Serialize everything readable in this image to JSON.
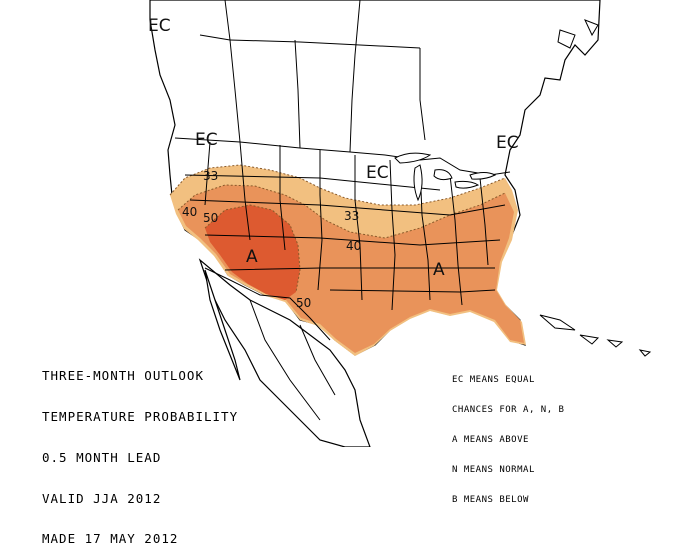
{
  "map_labels": {
    "ec": [
      "EC",
      "EC",
      "EC",
      "EC"
    ],
    "above": [
      "A",
      "A"
    ],
    "contours": [
      "33",
      "40",
      "50",
      "33",
      "40",
      "50"
    ]
  },
  "title_lines": [
    "THREE-MONTH OUTLOOK",
    "TEMPERATURE PROBABILITY",
    "0.5 MONTH LEAD",
    "VALID JJA 2012",
    "MADE 17 MAY 2012"
  ],
  "legend_lines": [
    "EC MEANS EQUAL",
    "CHANCES FOR A, N, B",
    "A MEANS ABOVE",
    "N MEANS NORMAL",
    "B MEANS BELOW"
  ],
  "colors": {
    "prob_33_40": "#f2c080",
    "prob_40_50": "#e9935a",
    "prob_50_60": "#dd5a30",
    "border": "#000000",
    "background": "#ffffff"
  }
}
